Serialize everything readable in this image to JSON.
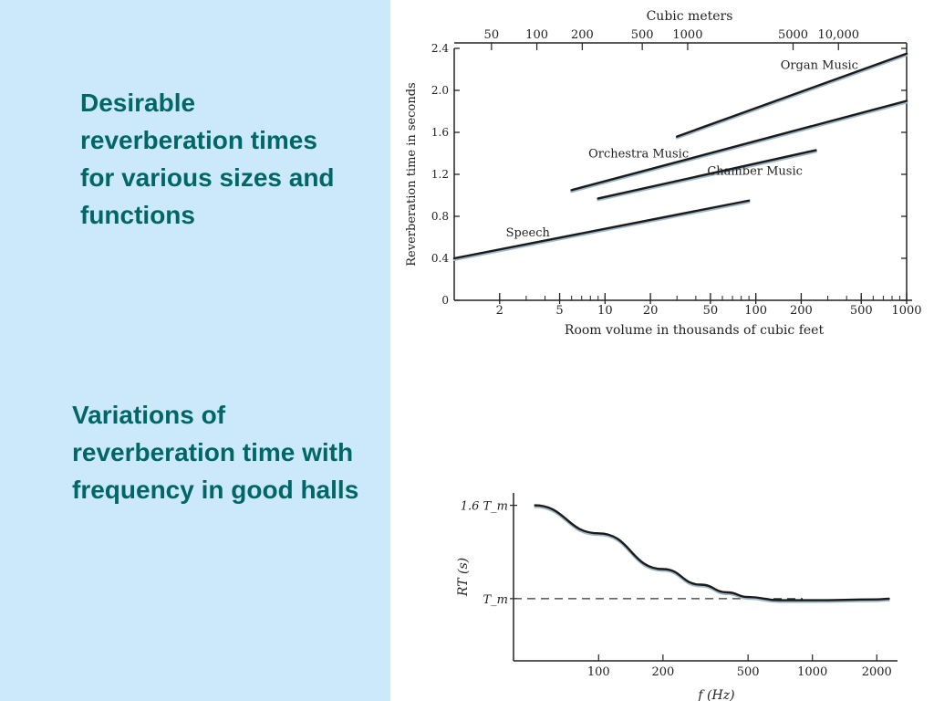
{
  "slide": {
    "colors": {
      "panel": "#cce9fb",
      "caption_text": "#006666",
      "curve": "#1a1a1a",
      "curve_shadow": "#9fb8c8"
    },
    "caption_top": "Desirable reverberation times for various sizes and functions",
    "caption_bottom": "Variations of reverberation time with frequency in good halls"
  },
  "chart_data": [
    {
      "type": "line",
      "xscale": "log",
      "xlabel": "Room volume in thousands of cubic feet",
      "ylabel": "Reverberation time in seconds",
      "top_axis_label": "Cubic meters",
      "xlim": [
        1,
        1000
      ],
      "ylim": [
        0,
        2.4
      ],
      "x_ticks": [
        2,
        5,
        10,
        20,
        50,
        100,
        200,
        500,
        1000
      ],
      "x_tick_labels": [
        "2",
        "5",
        "10",
        "20",
        "50",
        "100",
        "200",
        "500",
        "1000"
      ],
      "y_ticks": [
        0,
        0.4,
        0.8,
        1.2,
        1.6,
        2.0,
        2.4
      ],
      "y_tick_labels": [
        "0",
        "0.4",
        "0.8",
        "1.2",
        "1.6",
        "2.0",
        "2.4"
      ],
      "top_ticks_cubic_meters": [
        50,
        100,
        200,
        500,
        1000,
        5000,
        10000
      ],
      "top_tick_labels": [
        "50",
        "100",
        "200",
        "500",
        "1000",
        "5000",
        "10,000"
      ],
      "grid": false,
      "series": [
        {
          "name": "Speech",
          "x": [
            1,
            90
          ],
          "y": [
            0.4,
            0.95
          ]
        },
        {
          "name": "Orchestra Music",
          "x": [
            6,
            1000
          ],
          "y": [
            1.05,
            1.9
          ]
        },
        {
          "name": "Chamber Music",
          "x": [
            9,
            250
          ],
          "y": [
            0.97,
            1.43
          ]
        },
        {
          "name": "Organ Music",
          "x": [
            30,
            1000
          ],
          "y": [
            1.56,
            2.35
          ]
        }
      ]
    },
    {
      "type": "line",
      "xscale": "log",
      "xlabel": "f (Hz)",
      "ylabel": "RT (s)",
      "xlim": [
        40,
        2500
      ],
      "x_ticks": [
        100,
        200,
        500,
        1000,
        2000
      ],
      "x_tick_labels": [
        "100",
        "200",
        "500",
        "1000",
        "2000"
      ],
      "y_ticks": [
        1.0,
        1.6
      ],
      "y_tick_labels": [
        "T_m",
        "1.6 T_m"
      ],
      "y_unit": "T_m",
      "ylim": [
        0.6,
        1.68
      ],
      "reference_line": {
        "y": 1.0,
        "style": "dashed"
      },
      "grid": false,
      "series": [
        {
          "x": [
            50,
            100,
            200,
            300,
            400,
            500,
            700,
            1000,
            2000,
            2300
          ],
          "y": [
            1.6,
            1.42,
            1.19,
            1.09,
            1.04,
            1.01,
            0.99,
            0.99,
            0.995,
            1.0
          ]
        }
      ]
    }
  ]
}
